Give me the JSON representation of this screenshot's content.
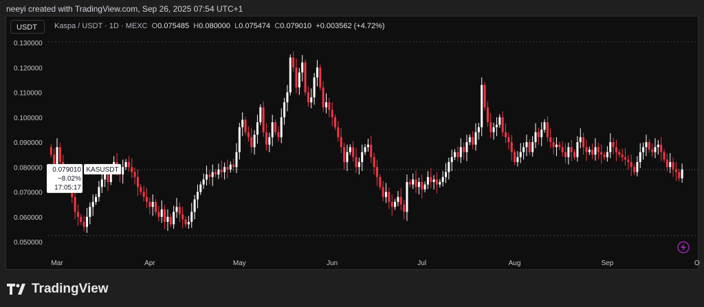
{
  "credit": "neeyi created with TradingView.com, Sep 26, 2025 07:54 UTC+1",
  "symbol_button": "USDT",
  "legend": {
    "title": "Kaspa / USDT · 1D · MEXC",
    "o_label": "O",
    "o": "0.075485",
    "h_label": "H",
    "h": "0.080000",
    "l_label": "L",
    "l": "0.075474",
    "c_label": "C",
    "c": "0.079010",
    "change": "+0.003562 (+4.72%)"
  },
  "price_tag": {
    "price": "0.079010",
    "change": "−8.02%",
    "countdown": "17:05:17",
    "ticker": "KASUSDT"
  },
  "brand": "TradingView",
  "colors": {
    "up": "#ffffff",
    "down": "#f23645",
    "bg": "#0f0f0f",
    "flash": "#9c27b0"
  },
  "chart_data": {
    "type": "candlestick",
    "title": "Kaspa / USDT · 1D · MEXC",
    "start_date": "2025-02-27",
    "ylim": [
      0.045,
      0.132
    ],
    "yticks": [
      "0.130000",
      "0.120000",
      "0.110000",
      "0.100000",
      "0.090000",
      "0.080000",
      "0.070000",
      "0.060000",
      "0.050000"
    ],
    "xticks": [
      {
        "label": "Mar",
        "index": 2
      },
      {
        "label": "Apr",
        "index": 33
      },
      {
        "label": "May",
        "index": 63
      },
      {
        "label": "Jun",
        "index": 94
      },
      {
        "label": "Jul",
        "index": 124
      },
      {
        "label": "Aug",
        "index": 155
      },
      {
        "label": "Sep",
        "index": 186
      },
      {
        "label": "O",
        "index": 216
      }
    ],
    "first_open": 0.088,
    "closes": [
      0.085,
      0.08,
      0.088,
      0.082,
      0.078,
      0.075,
      0.072,
      0.068,
      0.062,
      0.06,
      0.058,
      0.056,
      0.06,
      0.064,
      0.066,
      0.068,
      0.072,
      0.075,
      0.078,
      0.074,
      0.08,
      0.082,
      0.079,
      0.077,
      0.08,
      0.082,
      0.08,
      0.078,
      0.076,
      0.072,
      0.07,
      0.068,
      0.066,
      0.064,
      0.066,
      0.062,
      0.06,
      0.063,
      0.058,
      0.06,
      0.057,
      0.062,
      0.064,
      0.061,
      0.059,
      0.057,
      0.058,
      0.062,
      0.067,
      0.07,
      0.073,
      0.075,
      0.077,
      0.076,
      0.078,
      0.077,
      0.079,
      0.078,
      0.08,
      0.079,
      0.081,
      0.08,
      0.086,
      0.096,
      0.099,
      0.094,
      0.092,
      0.088,
      0.093,
      0.098,
      0.104,
      0.094,
      0.089,
      0.092,
      0.098,
      0.094,
      0.092,
      0.1,
      0.106,
      0.11,
      0.124,
      0.12,
      0.112,
      0.118,
      0.122,
      0.11,
      0.106,
      0.108,
      0.116,
      0.12,
      0.112,
      0.104,
      0.106,
      0.103,
      0.1,
      0.096,
      0.092,
      0.088,
      0.082,
      0.086,
      0.088,
      0.084,
      0.08,
      0.082,
      0.086,
      0.088,
      0.089,
      0.084,
      0.08,
      0.076,
      0.072,
      0.068,
      0.07,
      0.066,
      0.064,
      0.066,
      0.068,
      0.065,
      0.062,
      0.074,
      0.073,
      0.075,
      0.072,
      0.074,
      0.071,
      0.073,
      0.076,
      0.074,
      0.075,
      0.073,
      0.074,
      0.076,
      0.078,
      0.082,
      0.084,
      0.086,
      0.084,
      0.088,
      0.086,
      0.09,
      0.092,
      0.089,
      0.094,
      0.096,
      0.113,
      0.104,
      0.098,
      0.094,
      0.096,
      0.097,
      0.1,
      0.094,
      0.092,
      0.09,
      0.086,
      0.082,
      0.084,
      0.086,
      0.088,
      0.09,
      0.086,
      0.09,
      0.094,
      0.092,
      0.095,
      0.098,
      0.092,
      0.09,
      0.088,
      0.089,
      0.088,
      0.086,
      0.084,
      0.088,
      0.086,
      0.084,
      0.09,
      0.092,
      0.088,
      0.086,
      0.087,
      0.085,
      0.088,
      0.086,
      0.085,
      0.084,
      0.086,
      0.09,
      0.088,
      0.086,
      0.085,
      0.084,
      0.083,
      0.082,
      0.08,
      0.078,
      0.082,
      0.086,
      0.088,
      0.09,
      0.087,
      0.086,
      0.088,
      0.089,
      0.086,
      0.083,
      0.08,
      0.082,
      0.079,
      0.078,
      0.0755,
      0.07901
    ],
    "current_price": 0.07901
  }
}
